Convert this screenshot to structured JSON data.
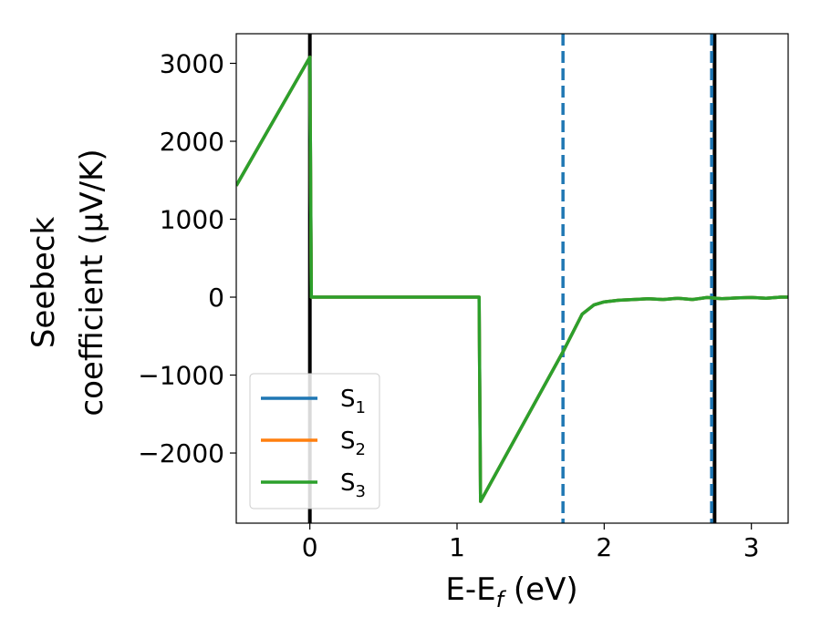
{
  "chart_data": {
    "type": "line",
    "xlabel": {
      "main": "E-E",
      "sub": "f",
      "unit": " (eV)"
    },
    "ylabel": {
      "line1": "Seebeck",
      "line2": "coefficient  (μV/K)"
    },
    "xlim": [
      -0.5,
      3.25
    ],
    "ylim": [
      -2900,
      3380
    ],
    "xticks": [
      0,
      1,
      2,
      3
    ],
    "xtick_labels": [
      "0",
      "1",
      "2",
      "3"
    ],
    "yticks": [
      3000,
      2000,
      1000,
      0,
      -1000,
      -2000
    ],
    "ytick_labels": [
      "3000",
      "2000",
      "1000",
      "0",
      "−1000",
      "−2000"
    ],
    "grid": false,
    "legend_position": "lower-left",
    "series": [
      {
        "name": "S",
        "sub": "1",
        "color": "#1f77b4",
        "x": [
          -0.5,
          0.0,
          0.01,
          1.15,
          1.16,
          1.72,
          1.85,
          1.93,
          2.0,
          2.1,
          2.2,
          2.3,
          2.4,
          2.5,
          2.6,
          2.7,
          2.8,
          2.9,
          3.0,
          3.1,
          3.2,
          3.25
        ],
        "y": [
          1430,
          3080,
          0,
          0,
          -2620,
          -700,
          -220,
          -100,
          -60,
          -40,
          -30,
          -20,
          -30,
          -15,
          -30,
          -5,
          -20,
          -10,
          -5,
          -15,
          0,
          0
        ]
      },
      {
        "name": "S",
        "sub": "2",
        "color": "#ff7f0e",
        "x": [
          -0.5,
          0.0,
          0.01,
          1.15,
          1.16,
          1.72,
          1.85,
          1.93,
          2.0,
          2.1,
          2.2,
          2.3,
          2.4,
          2.5,
          2.6,
          2.7,
          2.8,
          2.9,
          3.0,
          3.1,
          3.2,
          3.25
        ],
        "y": [
          1430,
          3080,
          0,
          0,
          -2620,
          -700,
          -220,
          -100,
          -60,
          -40,
          -30,
          -20,
          -30,
          -15,
          -30,
          -5,
          -20,
          -10,
          -5,
          -15,
          0,
          0
        ]
      },
      {
        "name": "S",
        "sub": "3",
        "color": "#2ca02c",
        "x": [
          -0.5,
          0.0,
          0.01,
          1.15,
          1.16,
          1.72,
          1.85,
          1.93,
          2.0,
          2.1,
          2.2,
          2.3,
          2.4,
          2.5,
          2.6,
          2.7,
          2.8,
          2.9,
          3.0,
          3.1,
          3.2,
          3.25
        ],
        "y": [
          1430,
          3080,
          0,
          0,
          -2620,
          -700,
          -220,
          -100,
          -60,
          -40,
          -30,
          -20,
          -30,
          -15,
          -30,
          -5,
          -20,
          -10,
          -5,
          -15,
          0,
          0
        ]
      }
    ],
    "vertical_lines": [
      {
        "x": 0.0,
        "style": "solid",
        "color": "#000000"
      },
      {
        "x": 2.75,
        "style": "solid",
        "color": "#000000"
      },
      {
        "x": 1.72,
        "style": "dashed",
        "color": "#1f77b4"
      },
      {
        "x": 2.73,
        "style": "dashed",
        "color": "#1f77b4"
      }
    ]
  }
}
